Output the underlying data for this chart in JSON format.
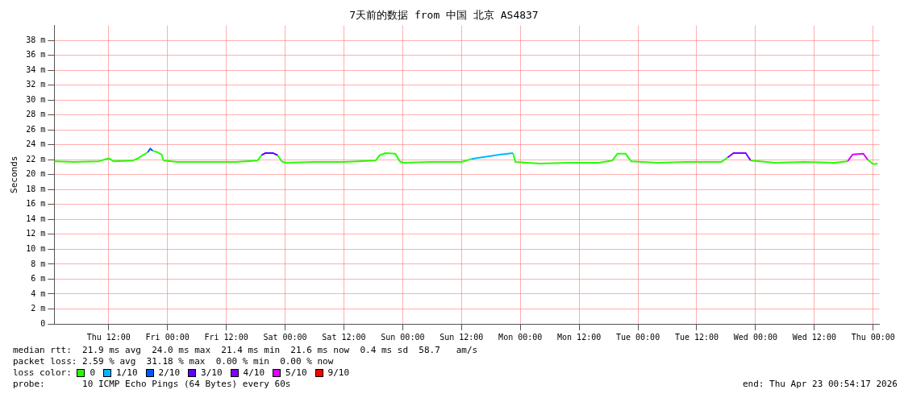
{
  "chart_data": {
    "type": "line",
    "title": "7天前的数据 from 中国 北京 AS4837",
    "ylabel": "Seconds",
    "legend_title": "loss color:",
    "legend": "bottom",
    "grid": true,
    "marker": "none",
    "line_style": "solid",
    "x": [
      "2026-04-16T00:54",
      "2026-04-16T05:00",
      "2026-04-16T10:00",
      "2026-04-16T12:00",
      "2026-04-16T13:00",
      "2026-04-16T17:00",
      "2026-04-16T18:00",
      "2026-04-16T19:00",
      "2026-04-16T20:00",
      "2026-04-16T20:30",
      "2026-04-16T21:00",
      "2026-04-16T22:00",
      "2026-04-16T22:48",
      "2026-04-16T23:12",
      "2026-04-17T02:00",
      "2026-04-17T08:00",
      "2026-04-17T14:00",
      "2026-04-17T18:24",
      "2026-04-17T19:12",
      "2026-04-17T20:00",
      "2026-04-17T21:30",
      "2026-04-17T22:30",
      "2026-04-17T23:18",
      "2026-04-18T00:00",
      "2026-04-18T06:00",
      "2026-04-18T12:00",
      "2026-04-18T18:30",
      "2026-04-18T19:18",
      "2026-04-18T20:30",
      "2026-04-18T22:30",
      "2026-04-18T23:24",
      "2026-04-19T00:00",
      "2026-04-19T06:00",
      "2026-04-19T12:00",
      "2026-04-19T14:00",
      "2026-04-19T17:00",
      "2026-04-19T20:00",
      "2026-04-19T22:30",
      "2026-04-19T23:00",
      "2026-04-20T04:00",
      "2026-04-20T10:00",
      "2026-04-20T16:00",
      "2026-04-20T18:48",
      "2026-04-20T19:48",
      "2026-04-20T21:30",
      "2026-04-20T22:36",
      "2026-04-21T04:00",
      "2026-04-21T10:00",
      "2026-04-21T17:00",
      "2026-04-21T18:18",
      "2026-04-21T19:30",
      "2026-04-21T22:00",
      "2026-04-21T23:00",
      "2026-04-22T04:00",
      "2026-04-22T10:00",
      "2026-04-22T16:00",
      "2026-04-22T18:48",
      "2026-04-22T19:48",
      "2026-04-22T22:00",
      "2026-04-22T22:54",
      "2026-04-23T00:00",
      "2026-04-23T00:54"
    ],
    "xlim": [
      "2026-04-16T00:54",
      "2026-04-23T01:18"
    ],
    "xticks": [
      {
        "value": "2026-04-16T12:00",
        "label": "Thu 12:00"
      },
      {
        "value": "2026-04-17T00:00",
        "label": "Fri 00:00"
      },
      {
        "value": "2026-04-17T12:00",
        "label": "Fri 12:00"
      },
      {
        "value": "2026-04-18T00:00",
        "label": "Sat 00:00"
      },
      {
        "value": "2026-04-18T12:00",
        "label": "Sat 12:00"
      },
      {
        "value": "2026-04-19T00:00",
        "label": "Sun 00:00"
      },
      {
        "value": "2026-04-19T12:00",
        "label": "Sun 12:00"
      },
      {
        "value": "2026-04-20T00:00",
        "label": "Mon 00:00"
      },
      {
        "value": "2026-04-20T12:00",
        "label": "Mon 12:00"
      },
      {
        "value": "2026-04-21T00:00",
        "label": "Tue 00:00"
      },
      {
        "value": "2026-04-21T12:00",
        "label": "Tue 12:00"
      },
      {
        "value": "2026-04-22T00:00",
        "label": "Wed 00:00"
      },
      {
        "value": "2026-04-22T12:00",
        "label": "Wed 12:00"
      },
      {
        "value": "2026-04-23T00:00",
        "label": "Thu 00:00"
      }
    ],
    "ylim": [
      0,
      40
    ],
    "yticks": [
      0,
      {
        "value": 2,
        "label": "2 m"
      },
      {
        "value": 4,
        "label": "4 m"
      },
      {
        "value": 6,
        "label": "6 m"
      },
      {
        "value": 8,
        "label": "8 m"
      },
      {
        "value": 10,
        "label": "10 m"
      },
      {
        "value": 12,
        "label": "12 m"
      },
      {
        "value": 14,
        "label": "14 m"
      },
      {
        "value": 16,
        "label": "16 m"
      },
      {
        "value": 18,
        "label": "18 m"
      },
      {
        "value": 20,
        "label": "20 m"
      },
      {
        "value": 22,
        "label": "22 m"
      },
      {
        "value": 24,
        "label": "24 m"
      },
      {
        "value": 26,
        "label": "26 m"
      },
      {
        "value": 28,
        "label": "28 m"
      },
      {
        "value": 30,
        "label": "30 m"
      },
      {
        "value": 32,
        "label": "32 m"
      },
      {
        "value": 34,
        "label": "34 m"
      },
      {
        "value": 36,
        "label": "36 m"
      },
      {
        "value": 38,
        "label": "38 m"
      }
    ],
    "series": [
      {
        "name": "0",
        "color": "#26ff00",
        "values": [
          21.8,
          21.7,
          21.8,
          22.2,
          21.8,
          21.9,
          22.2,
          22.6,
          23.0,
          null,
          23.2,
          23.0,
          22.7,
          21.9,
          21.7,
          21.7,
          21.7,
          21.9,
          22.6,
          null,
          null,
          22.6,
          21.8,
          21.6,
          21.7,
          21.7,
          21.9,
          22.6,
          22.9,
          22.8,
          21.8,
          21.6,
          21.7,
          21.7,
          22.1,
          null,
          null,
          22.9,
          21.7,
          21.5,
          21.6,
          21.6,
          21.9,
          22.8,
          22.8,
          21.8,
          21.6,
          21.7,
          21.7,
          22.3,
          null,
          null,
          21.9,
          21.6,
          21.7,
          21.6,
          21.8,
          null,
          null,
          22.0,
          21.4,
          21.5
        ]
      },
      {
        "name": "1/10",
        "color": "#00b8ff",
        "values": [
          null,
          null,
          null,
          null,
          null,
          null,
          null,
          null,
          null,
          null,
          null,
          null,
          null,
          null,
          null,
          null,
          null,
          null,
          null,
          null,
          null,
          null,
          null,
          null,
          null,
          null,
          null,
          null,
          null,
          null,
          null,
          null,
          null,
          null,
          22.1,
          22.4,
          22.7,
          22.9,
          null,
          null,
          null,
          null,
          null,
          null,
          null,
          null,
          null,
          null,
          null,
          null,
          null,
          null,
          null,
          null,
          null,
          null,
          null,
          null,
          null,
          null,
          null,
          null
        ]
      },
      {
        "name": "2/10",
        "color": "#0059ff",
        "values": [
          null,
          null,
          null,
          null,
          null,
          null,
          null,
          null,
          23.0,
          23.5,
          23.2,
          null,
          null,
          null,
          null,
          null,
          null,
          null,
          null,
          null,
          null,
          null,
          null,
          null,
          null,
          null,
          null,
          null,
          null,
          null,
          null,
          null,
          null,
          null,
          null,
          null,
          null,
          null,
          null,
          null,
          null,
          null,
          null,
          null,
          null,
          null,
          null,
          null,
          null,
          null,
          null,
          null,
          null,
          null,
          null,
          null,
          null,
          null,
          null,
          null,
          null,
          null
        ]
      },
      {
        "name": "3/10",
        "color": "#5e00ff",
        "values": [
          null,
          null,
          null,
          null,
          null,
          null,
          null,
          null,
          null,
          null,
          null,
          null,
          null,
          null,
          null,
          null,
          null,
          null,
          22.6,
          22.9,
          22.9,
          22.6,
          null,
          null,
          null,
          null,
          null,
          null,
          null,
          null,
          null,
          null,
          null,
          null,
          null,
          null,
          null,
          null,
          null,
          null,
          null,
          null,
          null,
          null,
          null,
          null,
          null,
          null,
          null,
          null,
          null,
          null,
          null,
          null,
          null,
          null,
          null,
          null,
          null,
          null,
          null,
          null
        ]
      },
      {
        "name": "4/10",
        "color": "#7e00ff",
        "values": [
          null,
          null,
          null,
          null,
          null,
          null,
          null,
          null,
          null,
          null,
          null,
          null,
          null,
          null,
          null,
          null,
          null,
          null,
          null,
          null,
          null,
          null,
          null,
          null,
          null,
          null,
          null,
          null,
          null,
          null,
          null,
          null,
          null,
          null,
          null,
          null,
          null,
          null,
          null,
          null,
          null,
          null,
          null,
          null,
          null,
          null,
          null,
          null,
          null,
          22.3,
          22.9,
          22.9,
          21.9,
          null,
          null,
          null,
          null,
          null,
          null,
          null,
          null,
          null
        ]
      },
      {
        "name": "5/10",
        "color": "#dd00ff",
        "values": [
          null,
          null,
          null,
          null,
          null,
          null,
          null,
          null,
          null,
          null,
          null,
          null,
          null,
          null,
          null,
          null,
          null,
          null,
          null,
          null,
          null,
          null,
          null,
          null,
          null,
          null,
          null,
          null,
          null,
          null,
          null,
          null,
          null,
          null,
          null,
          null,
          null,
          null,
          null,
          null,
          null,
          null,
          null,
          null,
          null,
          null,
          null,
          null,
          null,
          null,
          null,
          null,
          null,
          null,
          null,
          null,
          21.8,
          22.7,
          22.8,
          22.0,
          null,
          null
        ]
      },
      {
        "name": "9/10",
        "color": "#ff0000",
        "values": [
          null,
          null,
          null,
          null,
          null,
          null,
          null,
          null,
          null,
          null,
          null,
          null,
          null,
          null,
          null,
          null,
          null,
          null,
          null,
          null,
          null,
          null,
          null,
          null,
          null,
          null,
          null,
          null,
          null,
          null,
          null,
          null,
          null,
          null,
          null,
          null,
          null,
          null,
          null,
          null,
          null,
          null,
          null,
          null,
          null,
          null,
          null,
          null,
          null,
          null,
          null,
          null,
          null,
          null,
          null,
          null,
          null,
          null,
          null,
          null,
          null,
          null
        ]
      }
    ],
    "annotations": [
      "median rtt:  21.9 ms avg  24.0 ms max  21.4 ms min  21.6 ms now  0.4 ms sd  58.7   am/s",
      "packet loss: 2.59 % avg  31.18 % max  0.00 % min  0.00 % now",
      "probe:       10 ICMP Echo Pings (64 Bytes) every 60s",
      "end: Thu Apr 23 00:54:17 2026"
    ]
  }
}
